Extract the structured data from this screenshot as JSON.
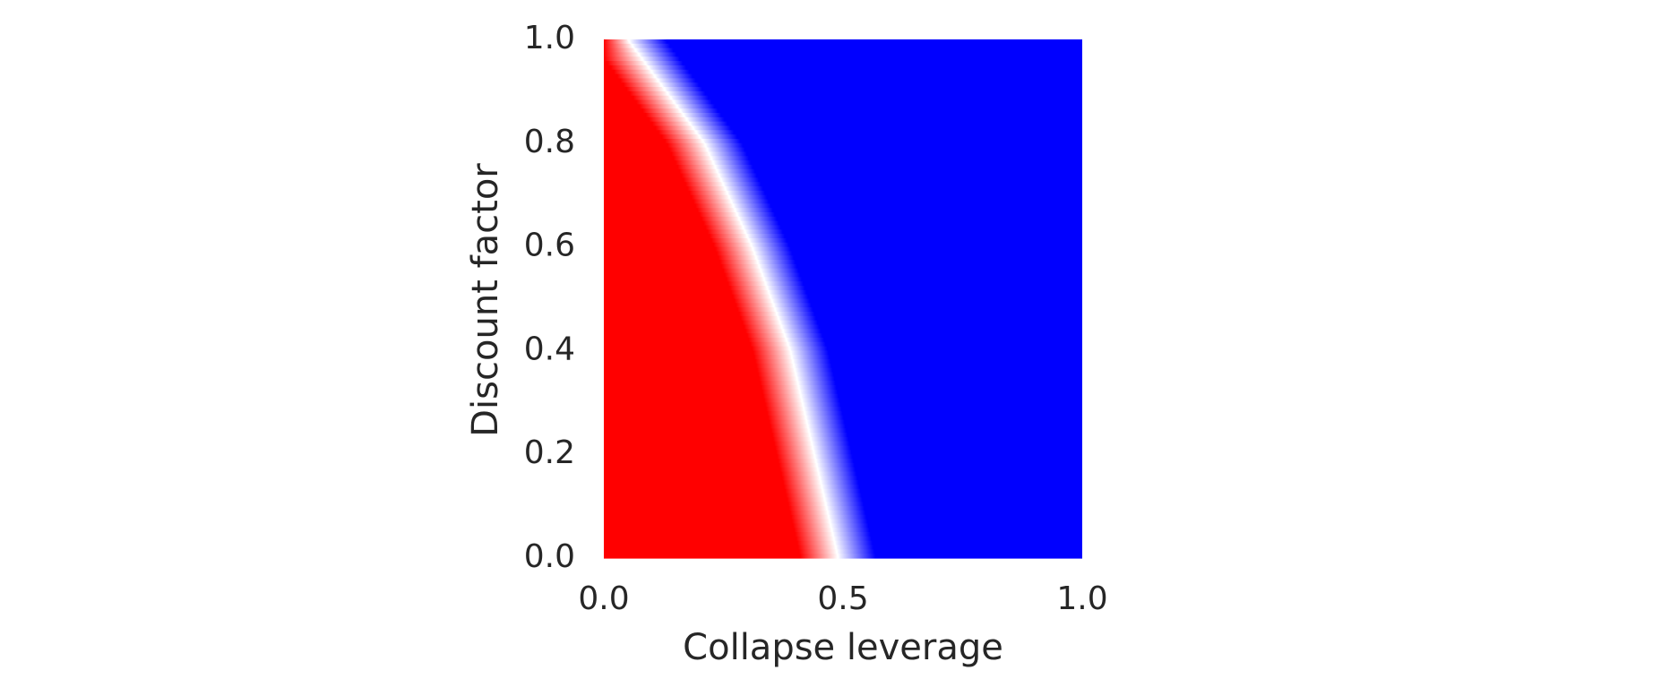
{
  "chart_data": {
    "type": "heatmap",
    "xlabel": "Collapse leverage",
    "ylabel": "Discount factor",
    "xlim": [
      0.0,
      1.0
    ],
    "ylim": [
      0.0,
      1.0
    ],
    "xticks": [
      {
        "value": 0,
        "label": "0.0"
      },
      0.5,
      {
        "value": 1,
        "label": "1.0"
      }
    ],
    "yticks": [
      {
        "value": 0,
        "label": "0.0"
      },
      0.2,
      0.4,
      0.6,
      0.8,
      {
        "value": 1,
        "label": "1.0"
      }
    ],
    "colors": [
      "#ff0000",
      "#ffffff",
      "#0000ff"
    ],
    "boundary": {
      "y": [
        0,
        0.2,
        0.4,
        0.6,
        0.8,
        1.0
      ],
      "x": [
        0.49,
        0.44,
        0.39,
        0.31,
        0.21,
        0.05
      ]
    }
  }
}
